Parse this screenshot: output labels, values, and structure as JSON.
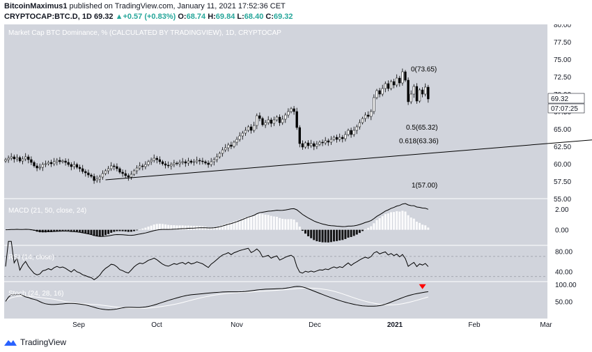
{
  "header": {
    "publisher": "BitcoinMaximus1",
    "published_text": "published on TradingView.com, January 11, 2021 17:52:36 CET",
    "symbol": "CRYPTOCAP:BTC.D, 1D",
    "last": "69.32",
    "change": "+0.57 (+0.83%)",
    "o_label": "O:",
    "o_value": "68.74",
    "h_label": "H:",
    "h_value": "69.84",
    "l_label": "L:",
    "l_value": "68.40",
    "c_label": "C:",
    "c_value": "69.32"
  },
  "footer": {
    "brand": "TradingView",
    "logo_icon": "tradingview-logo-icon"
  },
  "colors": {
    "bg": "#d1d4dc",
    "candle_up": "#ffffff",
    "candle_down": "#000000",
    "axis": "#131722",
    "red_marker": "#ff0000"
  },
  "chart_data": [
    {
      "type": "candlestick",
      "title": "Market Cap BTC Dominance, % (CALCULATED BY TRADINGVIEW), 1D, CRYPTOCAP",
      "ylim": [
        55,
        80
      ],
      "y_ticks": [
        "80.00",
        "77.50",
        "75.00",
        "72.50",
        "70.00",
        "67.50",
        "65.00",
        "62.50",
        "60.00",
        "57.50",
        "55.00"
      ],
      "x_ticks": [
        "Sep",
        "Oct",
        "Nov",
        "Dec",
        "2021",
        "Feb",
        "Mar"
      ],
      "closes": [
        60.6,
        60.8,
        61.0,
        60.7,
        60.9,
        60.4,
        60.7,
        61.0,
        60.6,
        60.2,
        59.7,
        59.4,
        59.5,
        59.9,
        60.0,
        60.2,
        60.0,
        60.3,
        60.5,
        60.3,
        60.4,
        60.2,
        59.9,
        59.6,
        59.9,
        59.5,
        59.3,
        58.9,
        58.7,
        58.4,
        58.2,
        57.6,
        57.8,
        58.1,
        58.6,
        59.0,
        59.3,
        59.7,
        59.6,
        59.3,
        58.8,
        58.6,
        58.3,
        58.1,
        58.5,
        59.0,
        59.4,
        59.7,
        59.6,
        59.9,
        60.3,
        60.5,
        60.8,
        60.6,
        60.3,
        60.0,
        59.8,
        59.7,
        59.9,
        60.1,
        60.0,
        60.2,
        60.3,
        60.1,
        60.4,
        60.2,
        60.3,
        60.5,
        60.4,
        60.3,
        60.1,
        59.9,
        60.3,
        60.6,
        61.0,
        61.5,
        62.0,
        62.3,
        62.7,
        62.5,
        63.1,
        63.5,
        64.0,
        64.4,
        64.8,
        65.3,
        64.8,
        65.5,
        66.9,
        66.5,
        65.6,
        65.9,
        66.3,
        65.8,
        66.3,
        66.7,
        65.9,
        66.4,
        67.0,
        67.5,
        67.9,
        67.5,
        65.2,
        62.9,
        62.4,
        63.0,
        62.6,
        62.9,
        62.5,
        62.8,
        63.1,
        63.0,
        63.3,
        63.1,
        63.5,
        63.8,
        63.5,
        63.8,
        63.6,
        64.2,
        64.8,
        64.2,
        64.8,
        65.3,
        65.9,
        66.5,
        67.0,
        66.8,
        67.5,
        69.5,
        70.5,
        70.0,
        70.8,
        71.5,
        70.8,
        71.8,
        71.3,
        72.3,
        71.6,
        73.2,
        72.0,
        68.9,
        70.0,
        71.1,
        69.0,
        70.6,
        70.0,
        71.0,
        69.3
      ],
      "last_price_label": "69.32",
      "countdown_label": "07:07:25",
      "fib_levels": [
        {
          "ratio": "0",
          "value": 73.65,
          "label": "0(73.65)"
        },
        {
          "ratio": "0.5",
          "value": 65.32,
          "label": "0.5(65.32)"
        },
        {
          "ratio": "0.618",
          "value": 63.36,
          "label": "0.618(63.36)"
        },
        {
          "ratio": "1",
          "value": 57.0,
          "label": "1(57.00)"
        }
      ],
      "trendline": {
        "start": [
          35,
          57.7
        ],
        "end": [
          255,
          65.1
        ]
      }
    },
    {
      "type": "bar+line",
      "title": "MACD (21, 50, close, 24)",
      "ylim": [
        -1.5,
        3.0
      ],
      "y_ticks": [
        "2.00",
        "0.00"
      ]
    },
    {
      "type": "line",
      "title": "RSI (14, close)",
      "ylim": [
        20,
        92
      ],
      "y_ticks": [
        "80.00",
        "40.00"
      ],
      "bands": [
        70,
        30
      ]
    },
    {
      "type": "line",
      "title": "Stoch (24, 28, 16)",
      "ylim": [
        0,
        108
      ],
      "y_ticks": [
        "100.00",
        "50.00"
      ]
    }
  ]
}
